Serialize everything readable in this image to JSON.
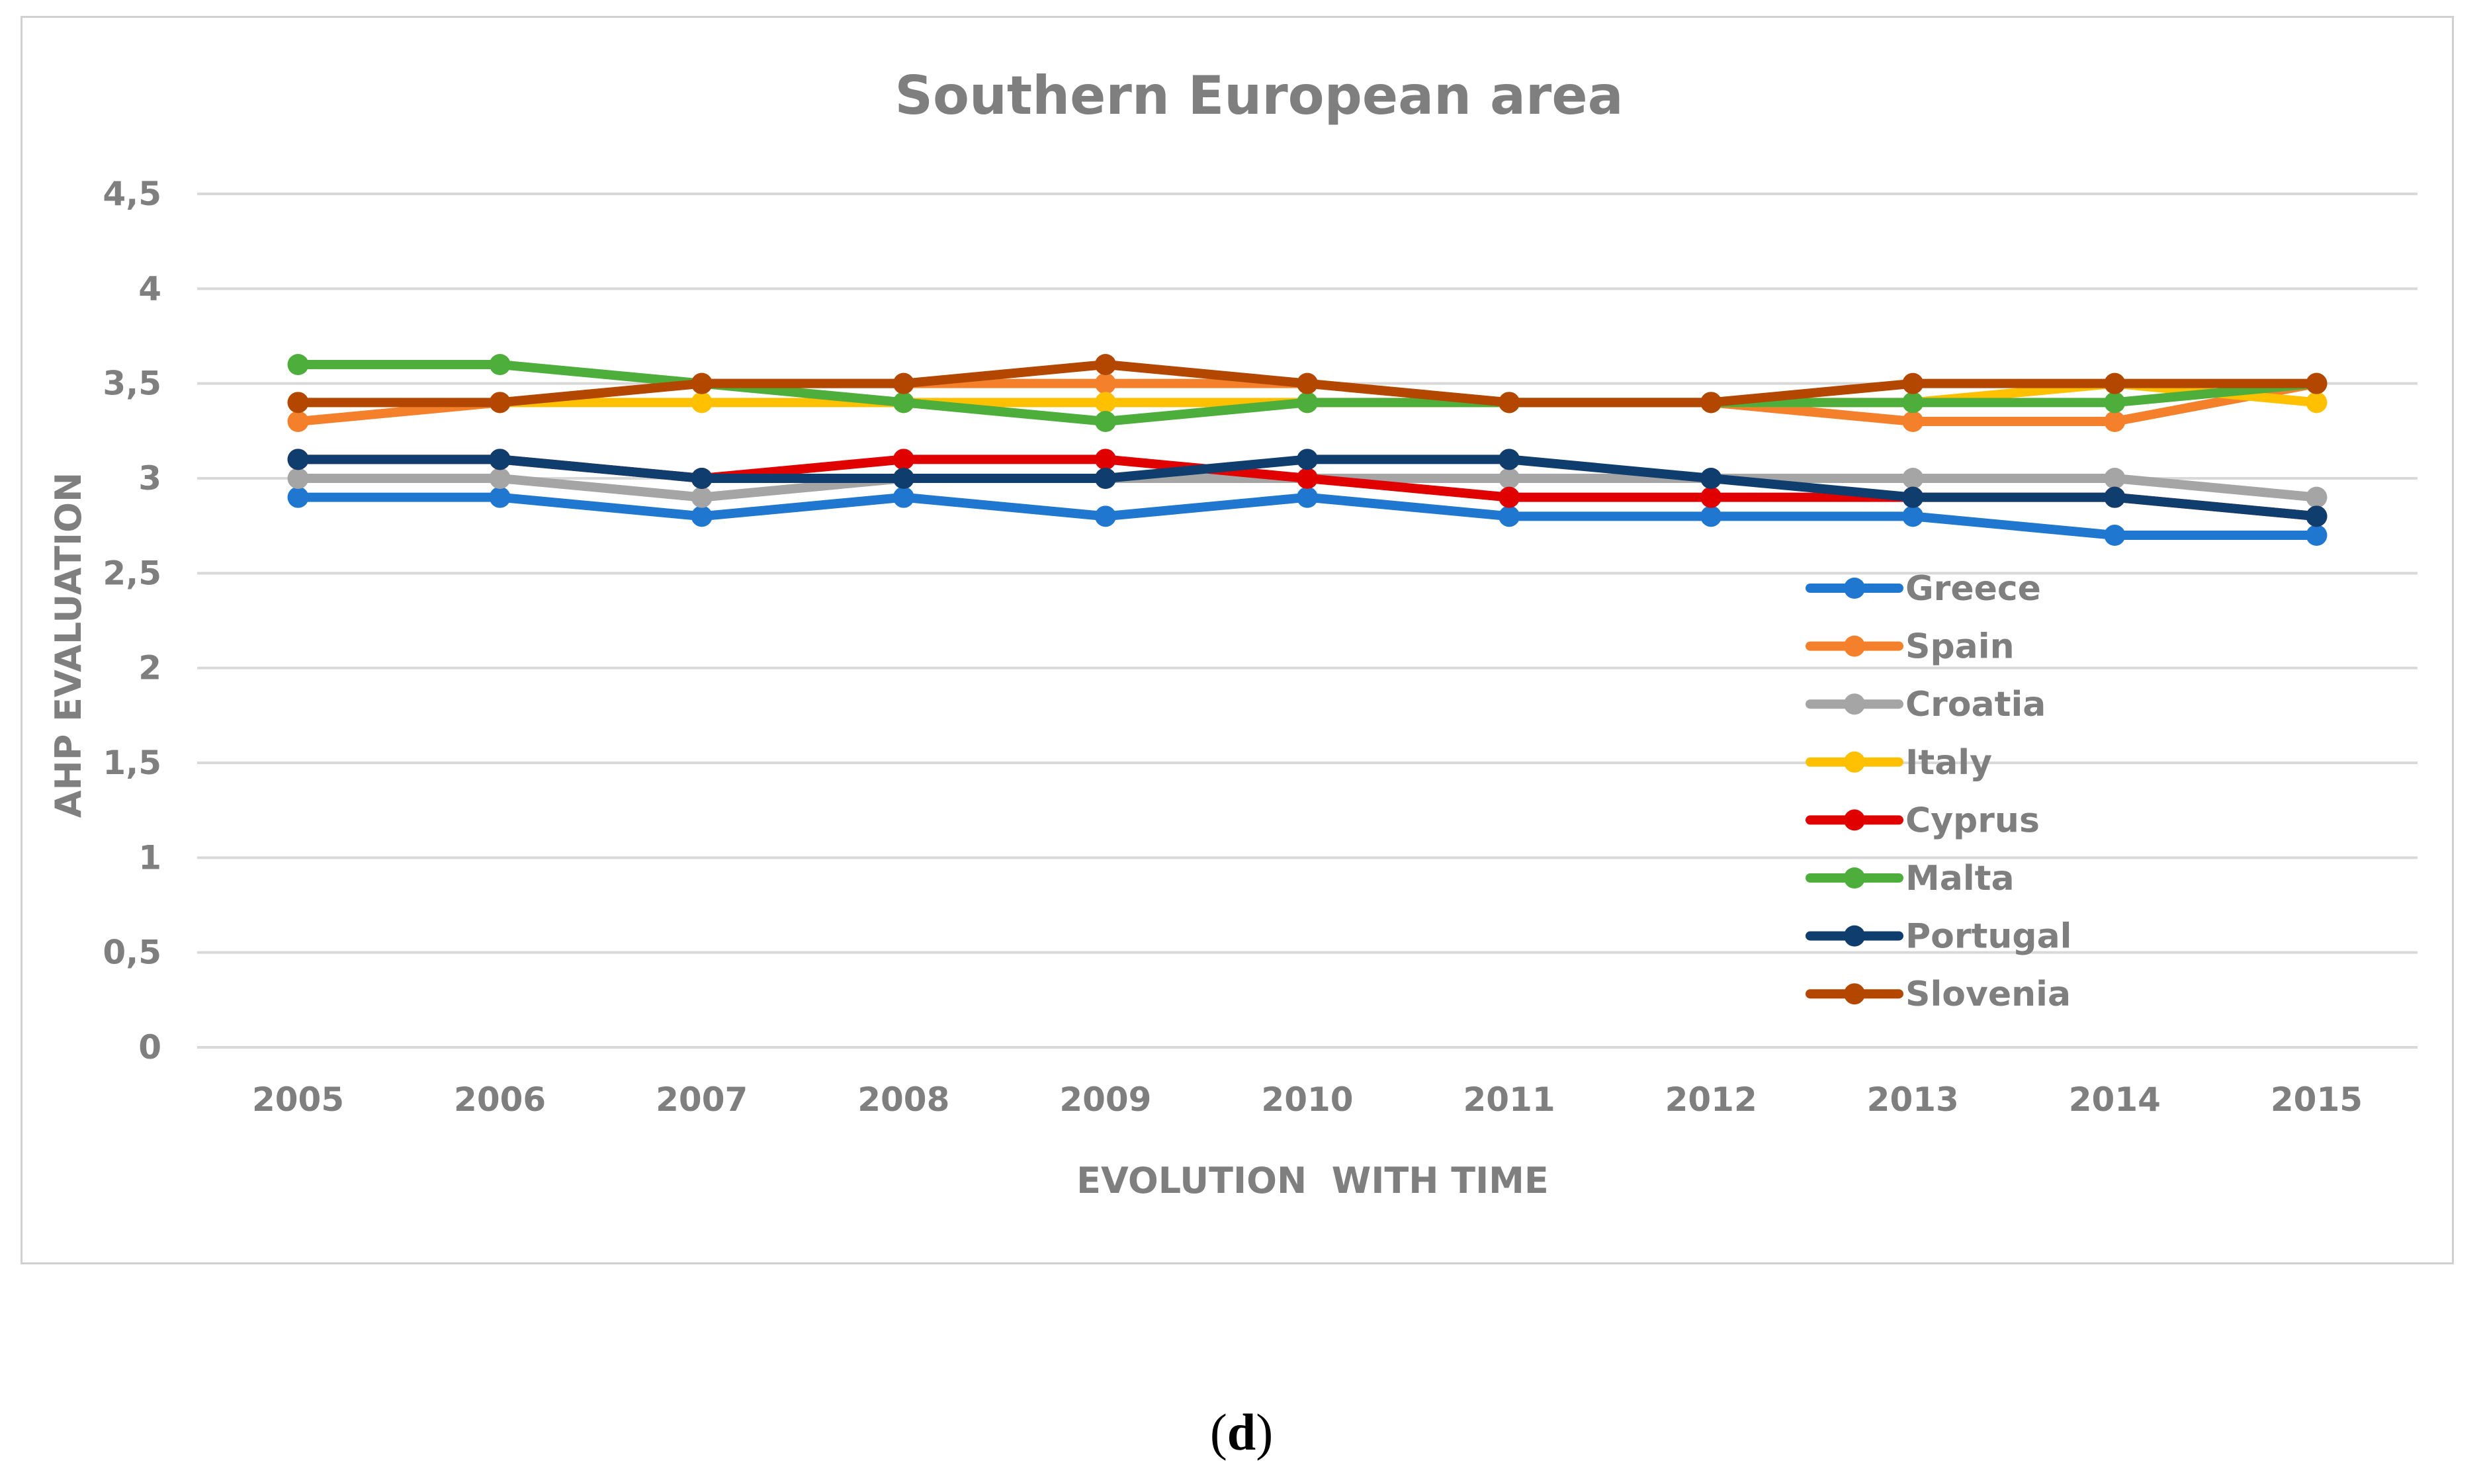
{
  "caption": {
    "open": "(",
    "letter": "d",
    "close": ")"
  },
  "chart_data": {
    "type": "line",
    "title": "Southern European area",
    "xlabel": "EVOLUTION  WITH TIME",
    "ylabel": "AHP EVALUATION",
    "ylim": [
      0,
      4.5
    ],
    "yticks": [
      "0",
      "0,5",
      "1",
      "1,5",
      "2",
      "2,5",
      "3",
      "3,5",
      "4",
      "4,5"
    ],
    "categories": [
      "2005",
      "2006",
      "2007",
      "2008",
      "2009",
      "2010",
      "2011",
      "2012",
      "2013",
      "2014",
      "2015"
    ],
    "grid": true,
    "legend_position": "right-lower",
    "series": [
      {
        "name": "Greece",
        "color": "#1f77d0",
        "values": [
          2.9,
          2.9,
          2.8,
          2.9,
          2.8,
          2.9,
          2.8,
          2.8,
          2.8,
          2.7,
          2.7
        ]
      },
      {
        "name": "Spain",
        "color": "#f5802c",
        "values": [
          3.3,
          3.4,
          3.5,
          3.5,
          3.5,
          3.5,
          3.4,
          3.4,
          3.3,
          3.3,
          3.5
        ]
      },
      {
        "name": "Croatia",
        "color": "#a5a5a5",
        "values": [
          3.0,
          3.0,
          2.9,
          3.0,
          3.0,
          3.0,
          3.0,
          3.0,
          3.0,
          3.0,
          2.9
        ]
      },
      {
        "name": "Italy",
        "color": "#ffc000",
        "values": [
          3.4,
          3.4,
          3.4,
          3.4,
          3.4,
          3.4,
          3.4,
          3.4,
          3.4,
          3.5,
          3.4
        ]
      },
      {
        "name": "Cyprus",
        "color": "#e00000",
        "values": [
          3.1,
          3.1,
          3.0,
          3.1,
          3.1,
          3.0,
          2.9,
          2.9,
          2.9,
          2.9,
          2.8
        ]
      },
      {
        "name": "Malta",
        "color": "#4eae3c",
        "values": [
          3.6,
          3.6,
          3.5,
          3.4,
          3.3,
          3.4,
          3.4,
          3.4,
          3.4,
          3.4,
          3.5
        ]
      },
      {
        "name": "Portugal",
        "color": "#0f3d6e",
        "values": [
          3.1,
          3.1,
          3.0,
          3.0,
          3.0,
          3.1,
          3.1,
          3.0,
          2.9,
          2.9,
          2.8
        ]
      },
      {
        "name": "Slovenia",
        "color": "#b34700",
        "values": [
          3.4,
          3.4,
          3.5,
          3.5,
          3.6,
          3.5,
          3.4,
          3.4,
          3.5,
          3.5,
          3.5
        ]
      }
    ]
  }
}
